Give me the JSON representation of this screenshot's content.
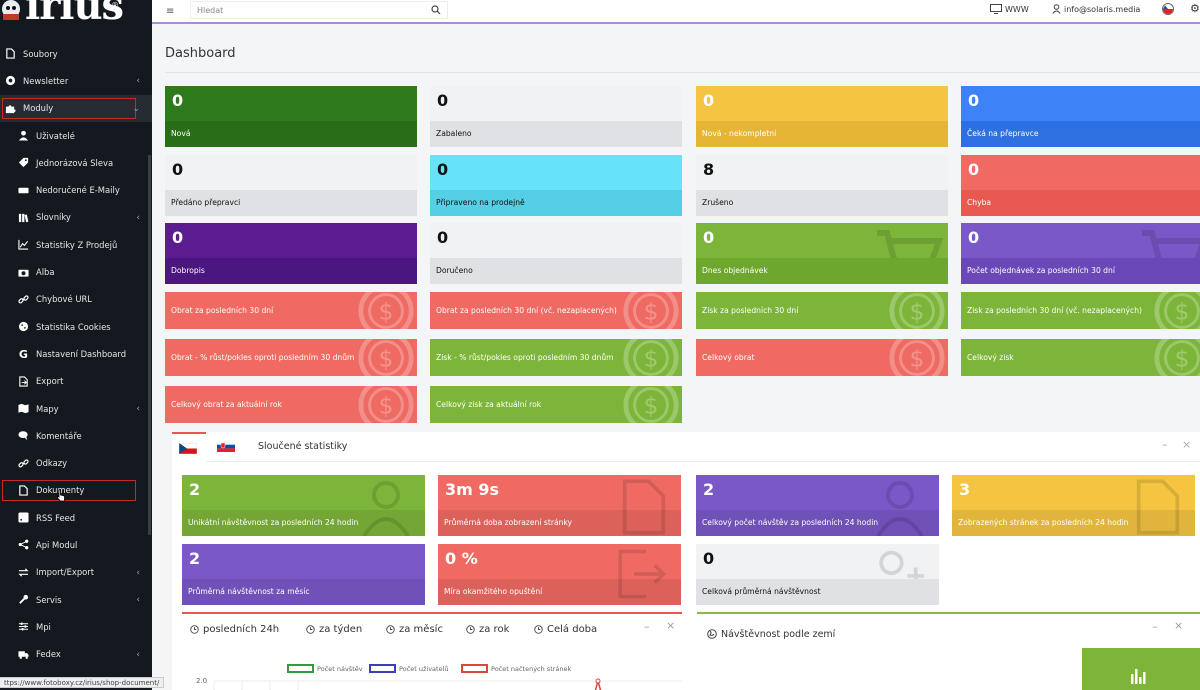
{
  "brand": {
    "logo_text": "irius",
    "logo_mark": "®"
  },
  "sidebar": {
    "items": [
      {
        "label": "Soubory",
        "icon": "file-icon",
        "level": "top",
        "chevron": ""
      },
      {
        "label": "Newsletter",
        "icon": "at-icon",
        "level": "top",
        "chevron": "‹"
      },
      {
        "label": "Moduly",
        "icon": "puzzle-icon",
        "level": "top",
        "chevron": "⌄",
        "active": true,
        "boxed": true
      },
      {
        "label": "Uživatelé",
        "icon": "user-icon",
        "level": "sub",
        "chevron": ""
      },
      {
        "label": "Jednorázová Sleva",
        "icon": "tag-icon",
        "level": "sub",
        "chevron": ""
      },
      {
        "label": "Nedoručené E-Maily",
        "icon": "keyboard-icon",
        "level": "sub",
        "chevron": ""
      },
      {
        "label": "Slovníky",
        "icon": "books-icon",
        "level": "sub",
        "chevron": "‹"
      },
      {
        "label": "Statistiky Z Prodejů",
        "icon": "line-chart-icon",
        "level": "sub",
        "chevron": ""
      },
      {
        "label": "Alba",
        "icon": "camera-icon",
        "level": "sub",
        "chevron": ""
      },
      {
        "label": "Chybové URL",
        "icon": "link-icon",
        "level": "sub",
        "chevron": ""
      },
      {
        "label": "Statistika Cookies",
        "icon": "cookie-icon",
        "level": "sub",
        "chevron": ""
      },
      {
        "label": "Nastavení Dashboard",
        "icon": "google-icon",
        "level": "sub",
        "chevron": ""
      },
      {
        "label": "Export",
        "icon": "export-icon",
        "level": "sub",
        "chevron": ""
      },
      {
        "label": "Mapy",
        "icon": "map-icon",
        "level": "sub",
        "chevron": "‹"
      },
      {
        "label": "Komentáře",
        "icon": "comments-icon",
        "level": "sub",
        "chevron": ""
      },
      {
        "label": "Odkazy",
        "icon": "link-icon",
        "level": "sub",
        "chevron": ""
      },
      {
        "label": "Dokumenty",
        "icon": "file-icon",
        "level": "sub",
        "chevron": "",
        "boxed": true
      },
      {
        "label": "RSS Feed",
        "icon": "rss-icon",
        "level": "sub",
        "chevron": ""
      },
      {
        "label": "Api Modul",
        "icon": "share-icon",
        "level": "sub",
        "chevron": ""
      },
      {
        "label": "Import/Export",
        "icon": "exchange-icon",
        "level": "sub",
        "chevron": "‹"
      },
      {
        "label": "Servis",
        "icon": "wrench-icon",
        "level": "sub",
        "chevron": "‹"
      },
      {
        "label": "Mpi",
        "icon": "sliders-icon",
        "level": "sub",
        "chevron": ""
      },
      {
        "label": "Fedex",
        "icon": "truck-icon",
        "level": "sub",
        "chevron": "‹"
      }
    ]
  },
  "status_url": "ttps://www.fotoboxy.cz/irius/shop-document/",
  "topbar": {
    "search_placeholder": "Hledat",
    "www_label": "WWW",
    "user_email": "info@solaris.media"
  },
  "page": {
    "title": "Dashboard"
  },
  "order_cards": [
    {
      "value": "0",
      "label": "Nová",
      "color": "#2e7a1c",
      "light": false
    },
    {
      "value": "0",
      "label": "Zabaleno",
      "color": "#f1f2f4",
      "band": "#dfe1e4",
      "light": true
    },
    {
      "value": "0",
      "label": "Nová - nekompletní",
      "color": "#f5c542",
      "band": "#e7b535",
      "light": false
    },
    {
      "value": "0",
      "label": "Čeká na přepravce",
      "color": "#3e82f7",
      "band": "#2e6fe2",
      "light": false
    },
    {
      "value": "0",
      "label": "Předáno přepravci",
      "color": "#f1f2f4",
      "band": "#dfe1e4",
      "light": true
    },
    {
      "value": "0",
      "label": "Připraveno na prodejně",
      "color": "#67e3f9",
      "band": "#54cfe6",
      "light": true
    },
    {
      "value": "8",
      "label": "Zrušeno",
      "color": "#f1f2f4",
      "band": "#dfe1e4",
      "light": true
    },
    {
      "value": "0",
      "label": "Chyba",
      "color": "#ef6a62",
      "band": "#e85a51",
      "light": false
    },
    {
      "value": "0",
      "label": "Dobropis",
      "color": "#5a1c8f",
      "band": "#4c1680",
      "light": false
    },
    {
      "value": "0",
      "label": "Doručeno",
      "color": "#f1f2f4",
      "band": "#dfe1e4",
      "light": true
    },
    {
      "value": "0",
      "label": "Dnes objednávek",
      "color": "#7db53a",
      "band": "#6ea72d",
      "light": false,
      "icon": "cart-icon"
    },
    {
      "value": "0",
      "label": "Počet objednávek za posledních 30 dní",
      "color": "#7a58c8",
      "band": "#6a48b8",
      "light": false,
      "icon": "cart-icon"
    }
  ],
  "finance_cards": [
    {
      "label": "Obrat za posledních 30 dní",
      "color": "#ef6a62"
    },
    {
      "label": "Obrat za posledních 30 dní (vč. nezaplacených)",
      "color": "#ef6a62"
    },
    {
      "label": "Zisk za posledních 30 dní",
      "color": "#7db53a"
    },
    {
      "label": "Zisk za posledních 30 dní (vč. nezaplacených)",
      "color": "#7db53a"
    },
    {
      "label": "Obrat - % růst/pokles oproti posledním 30 dnům",
      "color": "#ef6a62"
    },
    {
      "label": "Zisk - % růst/pokles oproti posledním 30 dnům",
      "color": "#7db53a"
    },
    {
      "label": "Celkový obrat",
      "color": "#ef6a62"
    },
    {
      "label": "Celkový zisk",
      "color": "#7db53a"
    },
    {
      "label": "Celkový obrat za aktuální rok",
      "color": "#ef6a62"
    },
    {
      "label": "Celkový zisk za aktuální rok",
      "color": "#7db53a"
    }
  ],
  "merged_stats": {
    "title": "Sloučené statistiky",
    "cards": [
      {
        "value": "2",
        "label": "Unikátní návštěvnost za posledních 24 hodin",
        "color": "#7db53a",
        "icon": "user-icon"
      },
      {
        "value": "3m 9s",
        "label": "Průměrná doba zobrazení stránky",
        "color": "#ef6a62",
        "icon": "document-icon"
      },
      {
        "value": "2",
        "label": "Celkový počet návštěv za posledních 24 hodin",
        "color": "#7a58c8",
        "icon": "user-icon"
      },
      {
        "value": "3",
        "label": "Zobrazených stránek za posledních 24 hodin",
        "color": "#f5c542",
        "icon": "document-icon"
      },
      {
        "value": "2",
        "label": "Průměrná návštěvnost za měsíc",
        "color": "#7a58c8",
        "icon": "none"
      },
      {
        "value": "0 %",
        "label": "Míra okamžitého opuštění",
        "color": "#ef6a62",
        "icon": "exit-icon"
      },
      {
        "value": "0",
        "label": "Celková průměrná návštěvnost",
        "color": "#f1f2f4",
        "light": true,
        "icon": "user-plus-icon"
      }
    ]
  },
  "period_tabs": [
    "posledních 24h",
    "za týden",
    "za měsíc",
    "za rok",
    "Celá doba"
  ],
  "chart_legend": [
    {
      "label": "Počet návštěv",
      "color": "#2e9e3e"
    },
    {
      "label": "Počet uživatelů",
      "color": "#3d3db8"
    },
    {
      "label": "Počet načtených stránek",
      "color": "#d9473b"
    }
  ],
  "chart_tick": "2.0",
  "country_panel": {
    "title": "Návštěvnost podle zemí"
  }
}
